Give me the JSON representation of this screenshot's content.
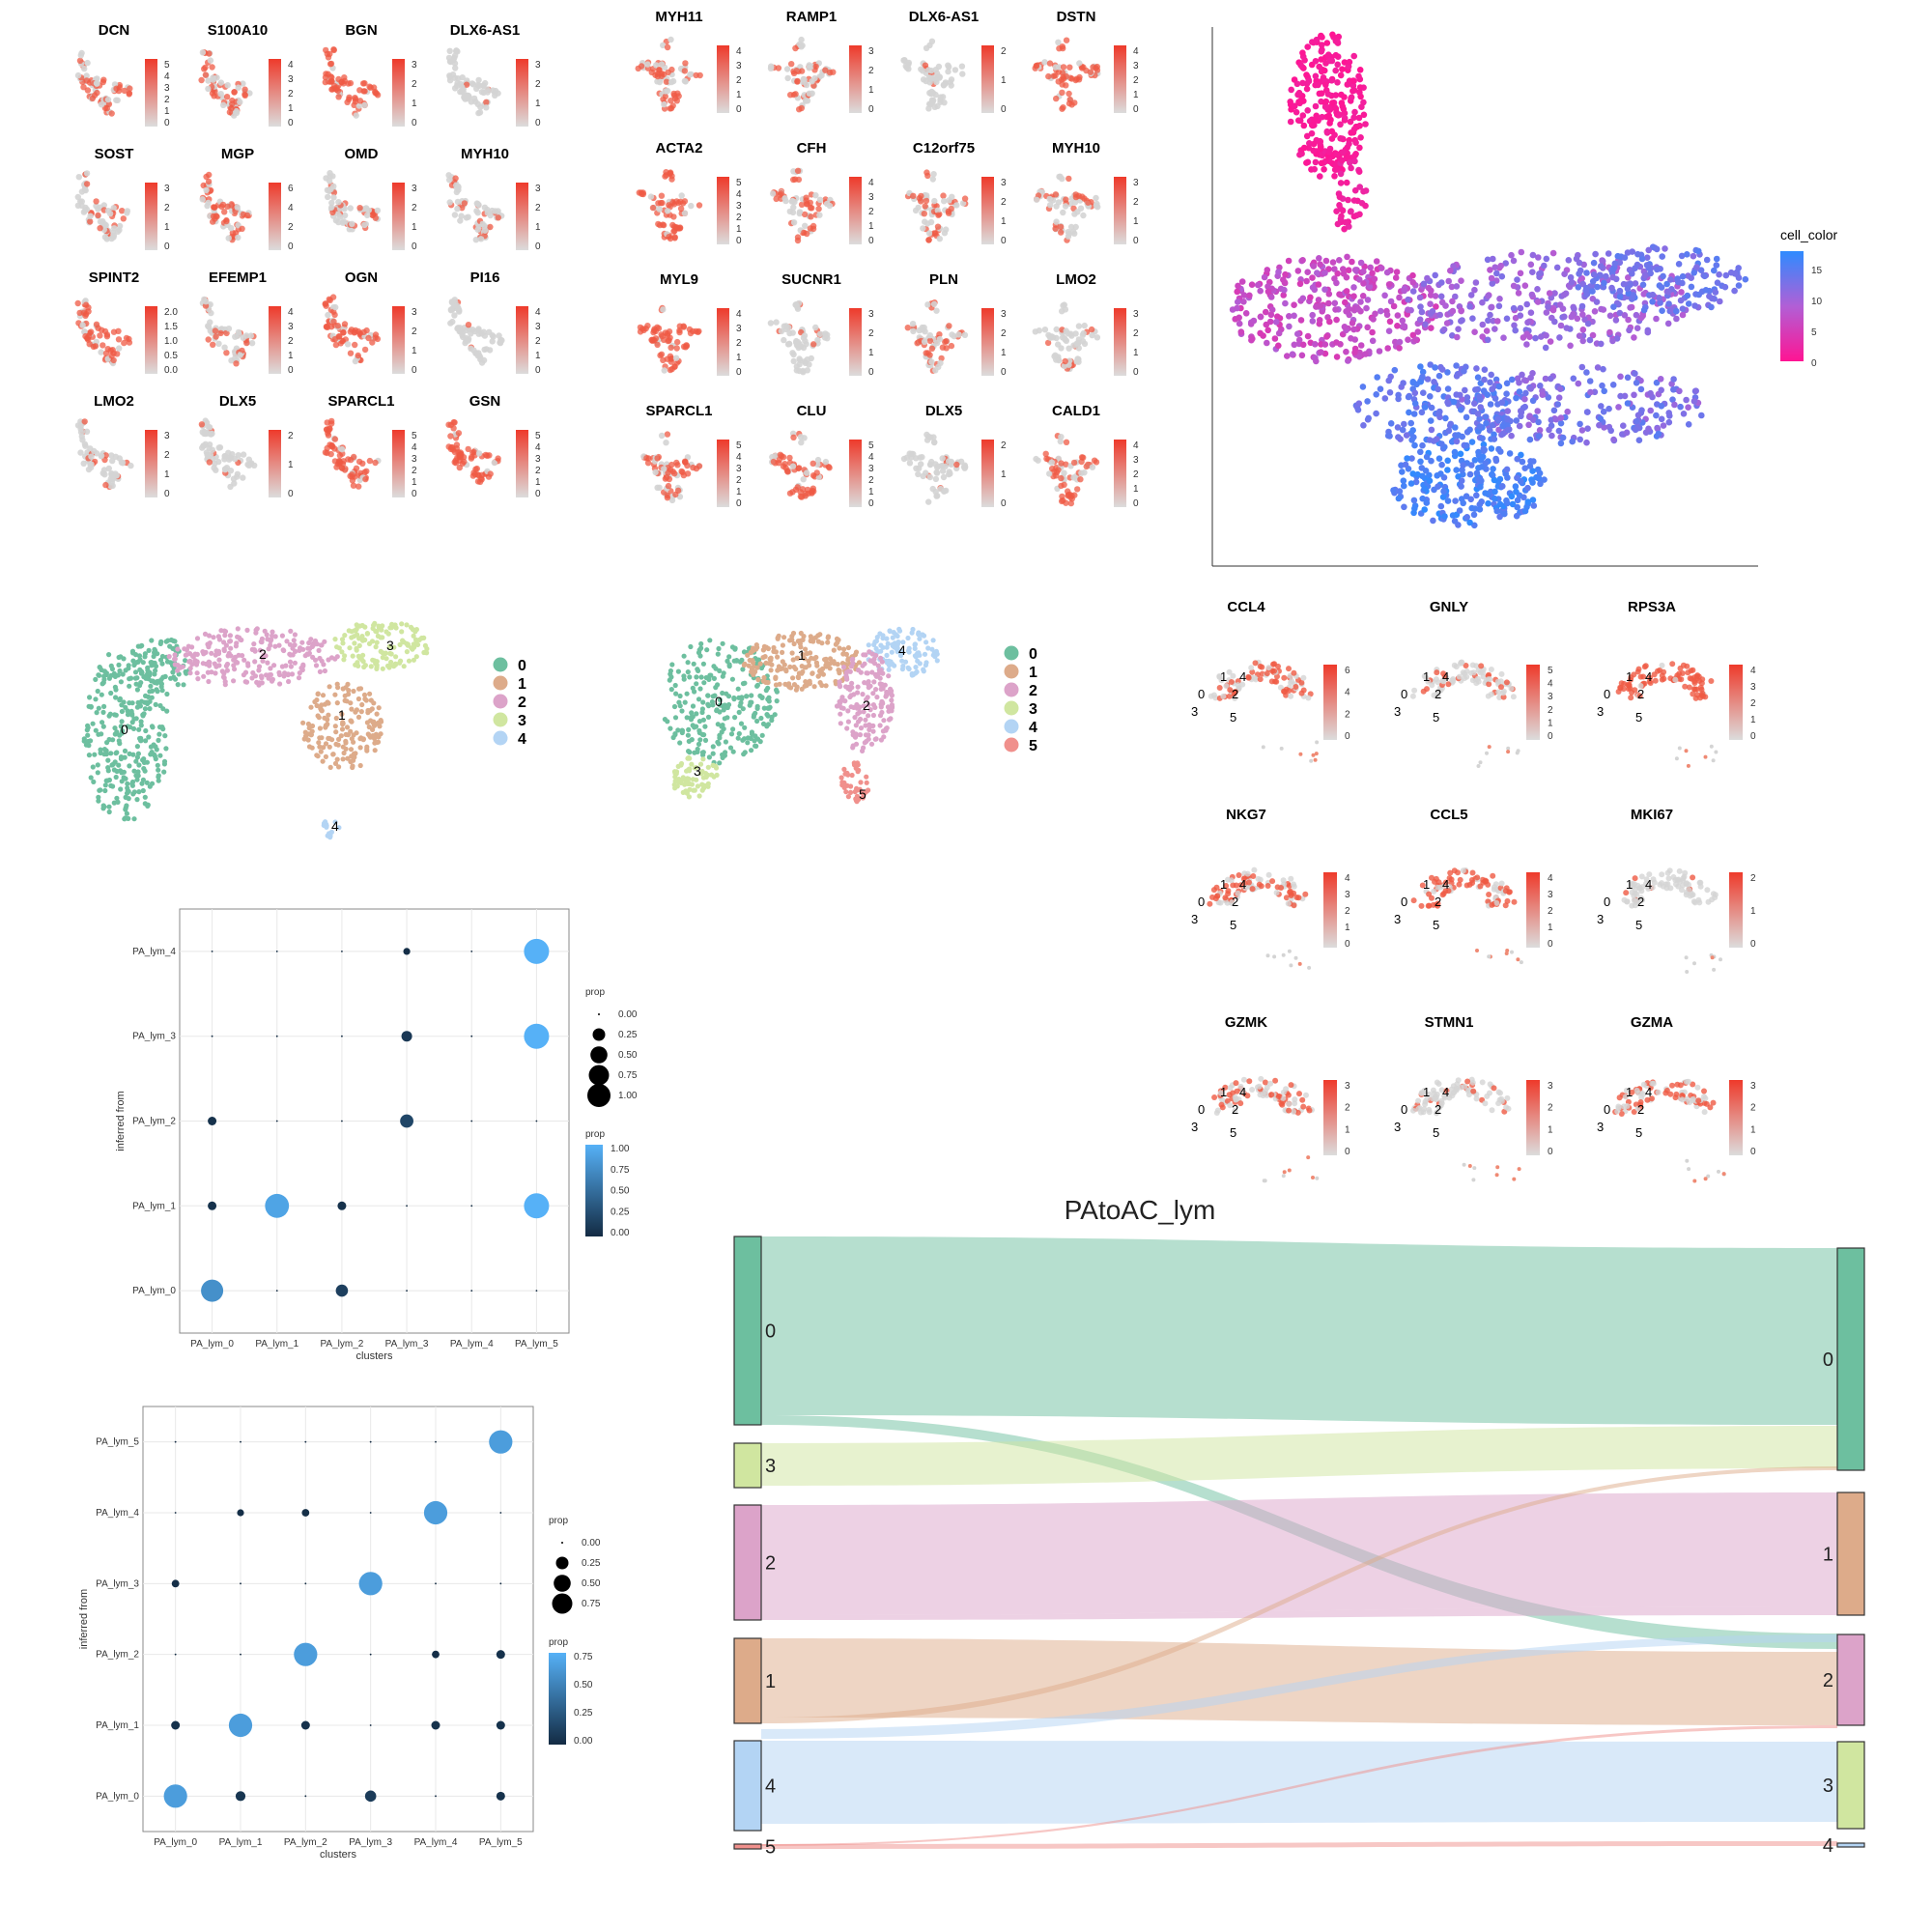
{
  "panel_a": {
    "genes": [
      "DCN",
      "S100A10",
      "BGN",
      "DLX6-AS1",
      "SOST",
      "MGP",
      "OMD",
      "MYH10",
      "SPINT2",
      "EFEMP1",
      "OGN",
      "PI16",
      "LMO2",
      "DLX5",
      "SPARCL1",
      "GSN"
    ],
    "scale_ticks": [
      [
        "5",
        "4",
        "3",
        "2",
        "1",
        "0"
      ],
      [
        "4",
        "3",
        "2",
        "1",
        "0"
      ],
      [
        "3",
        "2",
        "1",
        "0"
      ],
      [
        "3",
        "2",
        "1",
        "0"
      ],
      [
        "3",
        "2",
        "1",
        "0"
      ],
      [
        "6",
        "4",
        "2",
        "0"
      ],
      [
        "3",
        "2",
        "1",
        "0"
      ],
      [
        "3",
        "2",
        "1",
        "0"
      ],
      [
        "2.0",
        "1.5",
        "1.0",
        "0.5",
        "0.0"
      ],
      [
        "4",
        "3",
        "2",
        "1",
        "0"
      ],
      [
        "3",
        "2",
        "1",
        "0"
      ],
      [
        "4",
        "3",
        "2",
        "1",
        "0"
      ],
      [
        "3",
        "2",
        "1",
        "0"
      ],
      [
        "2",
        "1",
        "0"
      ],
      [
        "5",
        "4",
        "3",
        "2",
        "1",
        "0"
      ],
      [
        "5",
        "4",
        "3",
        "2",
        "1",
        "0"
      ]
    ]
  },
  "panel_b": {
    "genes": [
      "MYH11",
      "RAMP1",
      "DLX6-AS1",
      "DSTN",
      "ACTA2",
      "CFH",
      "C12orf75",
      "MYH10",
      "MYL9",
      "SUCNR1",
      "PLN",
      "LMO2",
      "SPARCL1",
      "CLU",
      "DLX5",
      "CALD1"
    ],
    "scale_ticks": [
      [
        "4",
        "3",
        "2",
        "1",
        "0"
      ],
      [
        "3",
        "2",
        "1",
        "0"
      ],
      [
        "2",
        "1",
        "0"
      ],
      [
        "4",
        "3",
        "2",
        "1",
        "0"
      ],
      [
        "5",
        "4",
        "3",
        "2",
        "1",
        "0"
      ],
      [
        "4",
        "3",
        "2",
        "1",
        "0"
      ],
      [
        "3",
        "2",
        "1",
        "0"
      ],
      [
        "3",
        "2",
        "1",
        "0"
      ],
      [
        "4",
        "3",
        "2",
        "1",
        "0"
      ],
      [
        "3",
        "2",
        "1",
        "0"
      ],
      [
        "3",
        "2",
        "1",
        "0"
      ],
      [
        "3",
        "2",
        "1",
        "0"
      ],
      [
        "5",
        "4",
        "3",
        "2",
        "1",
        "0"
      ],
      [
        "5",
        "4",
        "3",
        "2",
        "1",
        "0"
      ],
      [
        "2",
        "1",
        "0"
      ],
      [
        "4",
        "3",
        "2",
        "1",
        "0"
      ]
    ]
  },
  "panel_c": {
    "legend_title": "cell_color",
    "legend_ticks": [
      "15",
      "10",
      "5",
      "0"
    ],
    "colors": {
      "low": "#ff1493",
      "mid": "#b15fd6",
      "high": "#2e8bff"
    }
  },
  "panel_d": {
    "clusters": [
      "0",
      "1",
      "2",
      "3",
      "4"
    ],
    "colors": [
      "#6dbf9f",
      "#ddab8a",
      "#dca3c9",
      "#d0e6a0",
      "#b3d4f4"
    ]
  },
  "panel_e": {
    "clusters": [
      "0",
      "1",
      "2",
      "3",
      "4",
      "5"
    ],
    "colors": [
      "#6dbf9f",
      "#ddab8a",
      "#dca3c9",
      "#d0e6a0",
      "#b3d4f4",
      "#f0908c"
    ]
  },
  "panel_f": {
    "genes": [
      "CCL4",
      "GNLY",
      "RPS3A",
      "NKG7",
      "CCL5",
      "MKI67",
      "GZMK",
      "STMN1",
      "GZMA"
    ],
    "scale_ticks": [
      [
        "6",
        "4",
        "2",
        "0"
      ],
      [
        "5",
        "4",
        "3",
        "2",
        "1",
        "0"
      ],
      [
        "4",
        "3",
        "2",
        "1",
        "0"
      ],
      [
        "4",
        "3",
        "2",
        "1",
        "0"
      ],
      [
        "4",
        "3",
        "2",
        "1",
        "0"
      ],
      [
        "2",
        "1",
        "0"
      ],
      [
        "3",
        "2",
        "1",
        "0"
      ],
      [
        "3",
        "2",
        "1",
        "0"
      ],
      [
        "3",
        "2",
        "1",
        "0"
      ]
    ]
  },
  "dot1": {
    "xlabel": "clusters",
    "ylabel": "inferred from",
    "x_categories": [
      "PA_lym_0",
      "PA_lym_1",
      "PA_lym_2",
      "PA_lym_3",
      "PA_lym_4",
      "PA_lym_5"
    ],
    "y_categories": [
      "PA_lym_0",
      "PA_lym_1",
      "PA_lym_2",
      "PA_lym_3",
      "PA_lym_4"
    ],
    "size_legend_title": "prop",
    "size_legend_ticks": [
      "0.00",
      "0.25",
      "0.50",
      "0.75",
      "1.00"
    ],
    "color_legend_title": "prop",
    "color_legend_ticks": [
      "1.00",
      "0.75",
      "0.50",
      "0.25",
      "0.00"
    ]
  },
  "dot2": {
    "xlabel": "clusters",
    "ylabel": "inferred from",
    "x_categories": [
      "PA_lym_0",
      "PA_lym_1",
      "PA_lym_2",
      "PA_lym_3",
      "PA_lym_4",
      "PA_lym_5"
    ],
    "y_categories": [
      "PA_lym_0",
      "PA_lym_1",
      "PA_lym_2",
      "PA_lym_3",
      "PA_lym_4",
      "PA_lym_5"
    ],
    "size_legend_title": "prop",
    "size_legend_ticks": [
      "0.00",
      "0.25",
      "0.50",
      "0.75"
    ],
    "color_legend_title": "prop",
    "color_legend_ticks": [
      "0.75",
      "0.50",
      "0.25",
      "0.00"
    ]
  },
  "chart_data": [
    {
      "type": "scatter",
      "title": "",
      "xlabel": "clusters",
      "ylabel": "inferred from",
      "x_categories": [
        "PA_lym_0",
        "PA_lym_1",
        "PA_lym_2",
        "PA_lym_3",
        "PA_lym_4",
        "PA_lym_5"
      ],
      "y_categories": [
        "PA_lym_0",
        "PA_lym_1",
        "PA_lym_2",
        "PA_lym_3",
        "PA_lym_4"
      ],
      "points": [
        {
          "x": "PA_lym_0",
          "y": "PA_lym_0",
          "prop": 0.75
        },
        {
          "x": "PA_lym_2",
          "y": "PA_lym_0",
          "prop": 0.15
        },
        {
          "x": "PA_lym_0",
          "y": "PA_lym_1",
          "prop": 0.05
        },
        {
          "x": "PA_lym_1",
          "y": "PA_lym_1",
          "prop": 0.9
        },
        {
          "x": "PA_lym_2",
          "y": "PA_lym_1",
          "prop": 0.05
        },
        {
          "x": "PA_lym_5",
          "y": "PA_lym_1",
          "prop": 1.0
        },
        {
          "x": "PA_lym_0",
          "y": "PA_lym_2",
          "prop": 0.05
        },
        {
          "x": "PA_lym_3",
          "y": "PA_lym_2",
          "prop": 0.2
        },
        {
          "x": "PA_lym_3",
          "y": "PA_lym_3",
          "prop": 0.1
        },
        {
          "x": "PA_lym_5",
          "y": "PA_lym_3",
          "prop": 1.0
        },
        {
          "x": "PA_lym_3",
          "y": "PA_lym_4",
          "prop": 0.02
        },
        {
          "x": "PA_lym_5",
          "y": "PA_lym_4",
          "prop": 1.0
        }
      ]
    },
    {
      "type": "scatter",
      "title": "",
      "xlabel": "clusters",
      "ylabel": "inferred from",
      "x_categories": [
        "PA_lym_0",
        "PA_lym_1",
        "PA_lym_2",
        "PA_lym_3",
        "PA_lym_4",
        "PA_lym_5"
      ],
      "y_categories": [
        "PA_lym_0",
        "PA_lym_1",
        "PA_lym_2",
        "PA_lym_3",
        "PA_lym_4",
        "PA_lym_5"
      ],
      "points": [
        {
          "x": "PA_lym_0",
          "y": "PA_lym_0",
          "prop": 0.85
        },
        {
          "x": "PA_lym_1",
          "y": "PA_lym_0",
          "prop": 0.08
        },
        {
          "x": "PA_lym_3",
          "y": "PA_lym_0",
          "prop": 0.12
        },
        {
          "x": "PA_lym_5",
          "y": "PA_lym_0",
          "prop": 0.05
        },
        {
          "x": "PA_lym_0",
          "y": "PA_lym_1",
          "prop": 0.05
        },
        {
          "x": "PA_lym_1",
          "y": "PA_lym_1",
          "prop": 0.85
        },
        {
          "x": "PA_lym_2",
          "y": "PA_lym_1",
          "prop": 0.05
        },
        {
          "x": "PA_lym_4",
          "y": "PA_lym_1",
          "prop": 0.05
        },
        {
          "x": "PA_lym_5",
          "y": "PA_lym_1",
          "prop": 0.05
        },
        {
          "x": "PA_lym_2",
          "y": "PA_lym_2",
          "prop": 0.85
        },
        {
          "x": "PA_lym_4",
          "y": "PA_lym_2",
          "prop": 0.03
        },
        {
          "x": "PA_lym_5",
          "y": "PA_lym_2",
          "prop": 0.05
        },
        {
          "x": "PA_lym_0",
          "y": "PA_lym_3",
          "prop": 0.03
        },
        {
          "x": "PA_lym_3",
          "y": "PA_lym_3",
          "prop": 0.85
        },
        {
          "x": "PA_lym_1",
          "y": "PA_lym_4",
          "prop": 0.02
        },
        {
          "x": "PA_lym_2",
          "y": "PA_lym_4",
          "prop": 0.03
        },
        {
          "x": "PA_lym_4",
          "y": "PA_lym_4",
          "prop": 0.85
        },
        {
          "x": "PA_lym_5",
          "y": "PA_lym_5",
          "prop": 0.85
        }
      ]
    }
  ],
  "sankey": {
    "title": "PAtoAC_lym",
    "left_nodes": [
      "0",
      "3",
      "2",
      "1",
      "4",
      "5"
    ],
    "right_nodes": [
      "0",
      "1",
      "2",
      "3",
      "4"
    ]
  }
}
